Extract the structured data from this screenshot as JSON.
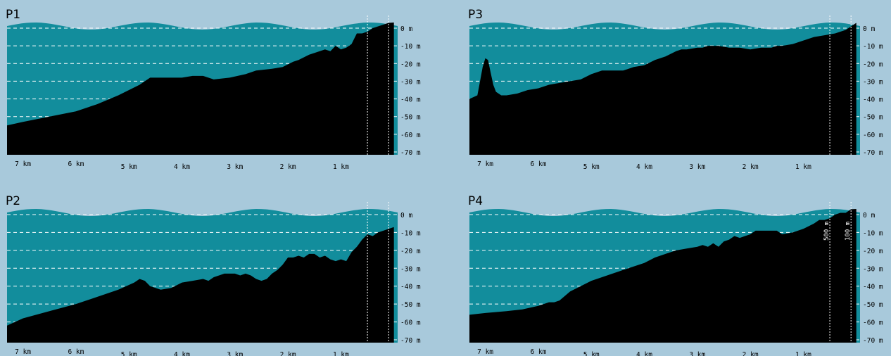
{
  "colors": {
    "background": "#a8c9db",
    "water": "#128d9c",
    "water_surface": "#1597a6",
    "seabed": "#000000",
    "gridline": "#ffffff"
  },
  "chart_data": [
    {
      "type": "area",
      "title": "P1",
      "xlabel": "",
      "ylabel": "",
      "x_unit": "km",
      "y_unit": "m",
      "x_ticks": [
        "7 km",
        "6 km",
        "5 km",
        "4 km",
        "3 km",
        "2 km",
        "1 km"
      ],
      "y_ticks": [
        "0 m",
        "-10 m",
        "-20 m",
        "-30 m",
        "-40 m",
        "-50 m",
        "-60 m",
        "-70 m"
      ],
      "xlim": [
        7.3,
        -0.07
      ],
      "ylim": [
        -70,
        5
      ],
      "grid": true,
      "distance_markers": [
        {
          "x": 0.5,
          "label": ""
        },
        {
          "x": 0.1,
          "label": ""
        }
      ],
      "profile": {
        "x": [
          7.3,
          7.0,
          6.5,
          6.0,
          5.6,
          5.2,
          4.8,
          4.6,
          4.3,
          4.0,
          3.8,
          3.6,
          3.4,
          3.1,
          2.8,
          2.6,
          2.3,
          2.1,
          1.9,
          1.8,
          1.6,
          1.5,
          1.4,
          1.3,
          1.2,
          1.1,
          1.0,
          0.9,
          0.8,
          0.75,
          0.7,
          0.6,
          0.5,
          0.4,
          0.3,
          0.2,
          0.1,
          0.0
        ],
        "y": [
          -55,
          -53,
          -50,
          -47,
          -43,
          -38,
          -32,
          -28,
          -28,
          -28,
          -27,
          -27,
          -29,
          -28,
          -26,
          -24,
          -23,
          -22,
          -19,
          -18,
          -15,
          -14,
          -13,
          -12,
          -13,
          -10,
          -12,
          -11,
          -9,
          -6,
          -3,
          -3,
          -2,
          0,
          1,
          2,
          3,
          4
        ]
      }
    },
    {
      "type": "area",
      "title": "P2",
      "xlabel": "",
      "ylabel": "",
      "x_unit": "km",
      "y_unit": "m",
      "x_ticks": [
        "7 km",
        "6 km",
        "5 km",
        "4 km",
        "3 km",
        "2 km",
        "1 km"
      ],
      "y_ticks": [
        "0 m",
        "-10 m",
        "-20 m",
        "-30 m",
        "-40 m",
        "-50 m",
        "-60 m",
        "-70 m"
      ],
      "xlim": [
        7.3,
        -0.07
      ],
      "ylim": [
        -70,
        5
      ],
      "grid": true,
      "distance_markers": [
        {
          "x": 0.5,
          "label": ""
        },
        {
          "x": 0.1,
          "label": ""
        }
      ],
      "profile": {
        "x": [
          7.3,
          7.0,
          6.5,
          6.0,
          5.6,
          5.2,
          4.9,
          4.8,
          4.7,
          4.6,
          4.4,
          4.2,
          4.0,
          3.8,
          3.6,
          3.5,
          3.4,
          3.3,
          3.2,
          3.0,
          2.9,
          2.8,
          2.7,
          2.6,
          2.5,
          2.4,
          2.3,
          2.2,
          2.1,
          2.0,
          1.9,
          1.8,
          1.7,
          1.6,
          1.5,
          1.4,
          1.3,
          1.2,
          1.1,
          1.0,
          0.9,
          0.8,
          0.7,
          0.6,
          0.5,
          0.4,
          0.3,
          0.2,
          0.1,
          0.0
        ],
        "y": [
          -62,
          -58,
          -54,
          -50,
          -46,
          -42,
          -38,
          -36,
          -37,
          -40,
          -42,
          -41,
          -38,
          -37,
          -36,
          -37,
          -35,
          -34,
          -33,
          -33,
          -34,
          -33,
          -34,
          -36,
          -37,
          -36,
          -33,
          -31,
          -28,
          -24,
          -24,
          -23,
          -24,
          -22,
          -22,
          -24,
          -23,
          -25,
          -26,
          -25,
          -26,
          -21,
          -18,
          -14,
          -11,
          -12,
          -10,
          -9,
          -8,
          -7
        ]
      }
    },
    {
      "type": "area",
      "title": "P3",
      "xlabel": "",
      "ylabel": "",
      "x_unit": "km",
      "y_unit": "m",
      "x_ticks": [
        "7 km",
        "6 km",
        "5 km",
        "4 km",
        "3 km",
        "2 km",
        "1 km"
      ],
      "y_ticks": [
        "0 m",
        "-10 m",
        "-20 m",
        "-30 m",
        "-40 m",
        "-50 m",
        "-60 m",
        "-70 m"
      ],
      "xlim": [
        7.3,
        -0.07
      ],
      "ylim": [
        -70,
        5
      ],
      "grid": true,
      "distance_markers": [
        {
          "x": 0.5,
          "label": ""
        },
        {
          "x": 0.1,
          "label": ""
        }
      ],
      "profile": {
        "x": [
          7.3,
          7.15,
          7.1,
          7.05,
          7.0,
          6.95,
          6.9,
          6.85,
          6.8,
          6.7,
          6.6,
          6.4,
          6.2,
          6.0,
          5.8,
          5.6,
          5.4,
          5.2,
          5.0,
          4.8,
          4.6,
          4.4,
          4.2,
          4.0,
          3.8,
          3.6,
          3.4,
          3.3,
          3.2,
          3.0,
          2.9,
          2.8,
          2.6,
          2.4,
          2.2,
          2.0,
          1.8,
          1.6,
          1.5,
          1.4,
          1.2,
          1.1,
          1.0,
          0.8,
          0.6,
          0.4,
          0.3,
          0.2,
          0.1,
          0.0
        ],
        "y": [
          -40,
          -38,
          -30,
          -22,
          -17,
          -18,
          -25,
          -32,
          -36,
          -38,
          -38,
          -37,
          -35,
          -34,
          -32,
          -31,
          -30,
          -29,
          -26,
          -24,
          -24,
          -24,
          -22,
          -21,
          -18,
          -16,
          -13,
          -12,
          -12,
          -11,
          -11,
          -10,
          -10,
          -11,
          -11,
          -12,
          -11,
          -11,
          -10,
          -10,
          -9,
          -8,
          -7,
          -5,
          -4,
          -3,
          -2,
          -1,
          1,
          3
        ]
      }
    },
    {
      "type": "area",
      "title": "P4",
      "xlabel": "",
      "ylabel": "",
      "x_unit": "km",
      "y_unit": "m",
      "x_ticks": [
        "7 km",
        "6 km",
        "5 km",
        "4 km",
        "3 km",
        "2 km",
        "1 km"
      ],
      "y_ticks": [
        "0 m",
        "-10 m",
        "-20 m",
        "-30 m",
        "-40 m",
        "-50 m",
        "-60 m",
        "-70 m"
      ],
      "xlim": [
        7.3,
        -0.07
      ],
      "ylim": [
        -70,
        5
      ],
      "grid": true,
      "distance_markers": [
        {
          "x": 0.5,
          "label": "500 m"
        },
        {
          "x": 0.1,
          "label": "100 m"
        }
      ],
      "profile": {
        "x": [
          7.3,
          7.0,
          6.6,
          6.3,
          6.0,
          5.8,
          5.7,
          5.6,
          5.4,
          5.2,
          5.0,
          4.8,
          4.6,
          4.4,
          4.2,
          4.0,
          3.8,
          3.6,
          3.4,
          3.2,
          3.0,
          2.9,
          2.8,
          2.7,
          2.6,
          2.5,
          2.4,
          2.3,
          2.2,
          2.1,
          2.0,
          1.9,
          1.8,
          1.6,
          1.5,
          1.4,
          1.2,
          1.0,
          0.8,
          0.7,
          0.6,
          0.5,
          0.4,
          0.3,
          0.2,
          0.1,
          0.0
        ],
        "y": [
          -56,
          -55,
          -54,
          -53,
          -51,
          -49,
          -49,
          -48,
          -43,
          -40,
          -37,
          -35,
          -33,
          -31,
          -29,
          -27,
          -24,
          -22,
          -20,
          -19,
          -18,
          -17,
          -18,
          -16,
          -18,
          -15,
          -14,
          -12,
          -13,
          -12,
          -11,
          -9,
          -9,
          -9,
          -9,
          -11,
          -10,
          -8,
          -5,
          -3,
          -3,
          -2,
          0,
          1,
          1,
          3,
          4
        ]
      }
    }
  ]
}
